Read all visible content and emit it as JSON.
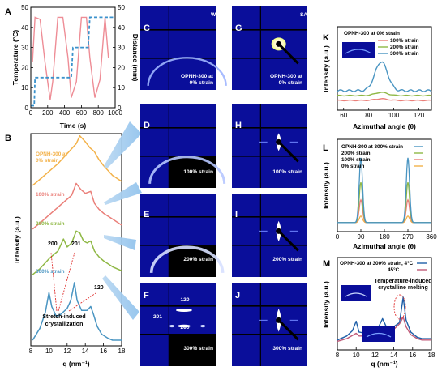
{
  "colors": {
    "pink": "#ee8d96",
    "blue_dash": "#3b92cc",
    "orange": "#f3b24a",
    "salmon": "#ea7f79",
    "green": "#8fb845",
    "steel": "#4a95c2",
    "dark_blue": "#1f5fa8",
    "magenta": "#c05a78",
    "detector": "#0a0e9a"
  },
  "panel_letters": {
    "A": "A",
    "B": "B",
    "C": "C",
    "D": "D",
    "E": "E",
    "F": "F",
    "G": "G",
    "H": "H",
    "I": "I",
    "J": "J",
    "K": "K",
    "L": "L",
    "M": "M"
  },
  "images": {
    "waxs_title": "WAXS",
    "saxs_title": "SAXS",
    "C_label_1": "OPNH-300 at",
    "C_label_2": "0% strain",
    "D_label": "100% strain",
    "E_label": "200% strain",
    "F_label": "300% strain",
    "F_peak_120": "120",
    "F_peak_201": "201",
    "F_peak_200": "200",
    "G_label_1": "OPNH-300 at",
    "G_label_2": "0% strain",
    "H_label": "100% strain",
    "I_label": "200% strain",
    "J_label": "300% strain"
  },
  "chart_data": [
    {
      "panel": "A",
      "type": "line",
      "xlabel": "Time (s)",
      "ylabel": "Temperature (°C)",
      "y2label": "Distance (mm)",
      "xlim": [
        0,
        1000
      ],
      "ylim": [
        0,
        50
      ],
      "y2lim": [
        0,
        50
      ],
      "xticks": [
        "0",
        "200",
        "400",
        "600",
        "800",
        "1000"
      ],
      "yticks": [
        "0",
        "10",
        "20",
        "30",
        "40",
        "50"
      ],
      "y2ticks": [
        "0",
        "10",
        "20",
        "30",
        "40",
        "50"
      ],
      "series": [
        {
          "axis": "left",
          "style": "solid",
          "color": "#ee8d96",
          "x": [
            20,
            50,
            110,
            170,
            230,
            260,
            320,
            380,
            440,
            480,
            540,
            600,
            660,
            700,
            760,
            820,
            880,
            920
          ],
          "y": [
            23,
            45,
            44,
            22,
            4,
            13,
            45,
            45,
            25,
            5,
            13,
            45,
            45,
            25,
            5,
            14,
            45,
            25
          ]
        },
        {
          "axis": "right",
          "style": "dashed",
          "color": "#3b92cc",
          "x": [
            0,
            40,
            50,
            240,
            250,
            480,
            500,
            680,
            700,
            1000
          ],
          "y": [
            1,
            1,
            15,
            15,
            15,
            15,
            30,
            30,
            45,
            45
          ]
        }
      ]
    },
    {
      "panel": "B",
      "type": "line",
      "xlabel": "q (nm⁻¹)",
      "ylabel": "Intensity (a.u.)",
      "xlim": [
        8,
        18
      ],
      "xticks": [
        "8",
        "10",
        "12",
        "14",
        "16",
        "18"
      ],
      "series": [
        {
          "name": "OPNH-300 at 0% strain",
          "color": "#f3b24a",
          "offset": 0.78,
          "x": [
            8.2,
            9,
            10,
            11,
            12,
            13,
            13.4,
            14,
            14.5,
            15,
            15.5,
            16,
            17,
            18
          ],
          "y": [
            0.0,
            0.03,
            0.07,
            0.11,
            0.16,
            0.21,
            0.25,
            0.22,
            0.19,
            0.17,
            0.13,
            0.1,
            0.05,
            0.02
          ]
        },
        {
          "name": "100% strain",
          "color": "#ea7f79",
          "offset": 0.56,
          "x": [
            8.2,
            9,
            10,
            11,
            12,
            12.5,
            13,
            13.5,
            14,
            14.6,
            15,
            15.5,
            16,
            17,
            18
          ],
          "y": [
            0.0,
            0.03,
            0.07,
            0.11,
            0.15,
            0.17,
            0.23,
            0.2,
            0.18,
            0.19,
            0.13,
            0.1,
            0.08,
            0.05,
            0.02
          ]
        },
        {
          "name": "200% strain",
          "color": "#8fb845",
          "offset": 0.33,
          "x": [
            8.2,
            9,
            10,
            10.5,
            11,
            11.6,
            12,
            12.5,
            13,
            13.4,
            13.8,
            14.2,
            14.6,
            15,
            15.5,
            16,
            17,
            18
          ],
          "y": [
            0.0,
            0.03,
            0.08,
            0.1,
            0.12,
            0.18,
            0.14,
            0.16,
            0.22,
            0.21,
            0.17,
            0.16,
            0.17,
            0.12,
            0.09,
            0.07,
            0.04,
            0.02
          ]
        },
        {
          "name": "300% strain",
          "color": "#4a95c2",
          "offset": 0.0,
          "x": [
            8.2,
            9,
            9.6,
            10,
            10.3,
            10.8,
            11.3,
            12,
            12.4,
            12.8,
            13.1,
            13.6,
            14.2,
            14.6,
            14.9,
            15.3,
            15.8,
            16.5,
            17,
            18
          ],
          "y": [
            0.0,
            0.06,
            0.14,
            0.24,
            0.17,
            0.12,
            0.13,
            0.16,
            0.2,
            0.29,
            0.2,
            0.15,
            0.15,
            0.17,
            0.13,
            0.07,
            0.03,
            0.01,
            0.0,
            0.0
          ]
        }
      ],
      "annotations": [
        "200",
        "201",
        "120",
        "Stretch-induced",
        "crystallization"
      ]
    },
    {
      "panel": "K",
      "type": "line",
      "xlabel": "Azimuthal angle (θ)",
      "ylabel": "Intensity (a.u.)",
      "xlim": [
        55,
        130
      ],
      "xticks": [
        "60",
        "80",
        "100",
        "120"
      ],
      "title": "OPNH-300 at 0% strain",
      "series": [
        {
          "name": "100% strain",
          "color": "#ea7f79"
        },
        {
          "name": "200% strain",
          "color": "#8fb845"
        },
        {
          "name": "300% strain",
          "color": "#4a95c2"
        }
      ],
      "legend": "top-right"
    },
    {
      "panel": "L",
      "type": "line",
      "xlabel": "Azimuthal angle (θ)",
      "ylabel": "Intensity (a.u.)",
      "xlim": [
        0,
        360
      ],
      "xticks": [
        "0",
        "90",
        "180",
        "270",
        "360"
      ],
      "series": [
        {
          "name": "OPNH-300 at 300% strain",
          "color": "#4a95c2",
          "peak": 1.0
        },
        {
          "name": "200% strain",
          "color": "#8fb845",
          "peak": 0.62
        },
        {
          "name": "100% strain",
          "color": "#ea7f79",
          "peak": 0.35
        },
        {
          "name": "0% strain",
          "color": "#f3b24a",
          "peak": 0.1
        }
      ],
      "peaks_at": [
        90,
        270
      ],
      "legend": "top-right"
    },
    {
      "panel": "M",
      "type": "line",
      "xlabel": "q (nm⁻¹)",
      "ylabel": "Intensity (a.u.)",
      "xlim": [
        8,
        18
      ],
      "xticks": [
        "8",
        "10",
        "12",
        "14",
        "16",
        "18"
      ],
      "series": [
        {
          "name": "OPNH-300 at 300% strain, 4°C",
          "color": "#1f5fa8",
          "x": [
            8,
            9,
            9.6,
            10,
            10.3,
            11,
            12,
            12.4,
            12.8,
            13.2,
            14,
            14.6,
            15,
            15.3,
            15.8,
            16.5,
            17,
            18
          ],
          "y": [
            0.1,
            0.16,
            0.24,
            0.38,
            0.22,
            0.2,
            0.24,
            0.3,
            0.42,
            0.3,
            0.3,
            0.36,
            0.74,
            0.4,
            0.22,
            0.14,
            0.12,
            0.12
          ]
        },
        {
          "name": "45°C",
          "color": "#c05a78",
          "x": [
            8,
            9,
            10,
            10.3,
            11,
            12,
            12.8,
            13.2,
            14,
            14.6,
            15,
            15.3,
            15.8,
            16.5,
            17,
            18
          ],
          "y": [
            0.08,
            0.12,
            0.2,
            0.16,
            0.16,
            0.2,
            0.26,
            0.22,
            0.26,
            0.34,
            0.44,
            0.3,
            0.18,
            0.12,
            0.1,
            0.1
          ]
        }
      ],
      "annotations": [
        "Temperature-induced",
        "crystalline melting"
      ],
      "legend": "top-right"
    }
  ]
}
